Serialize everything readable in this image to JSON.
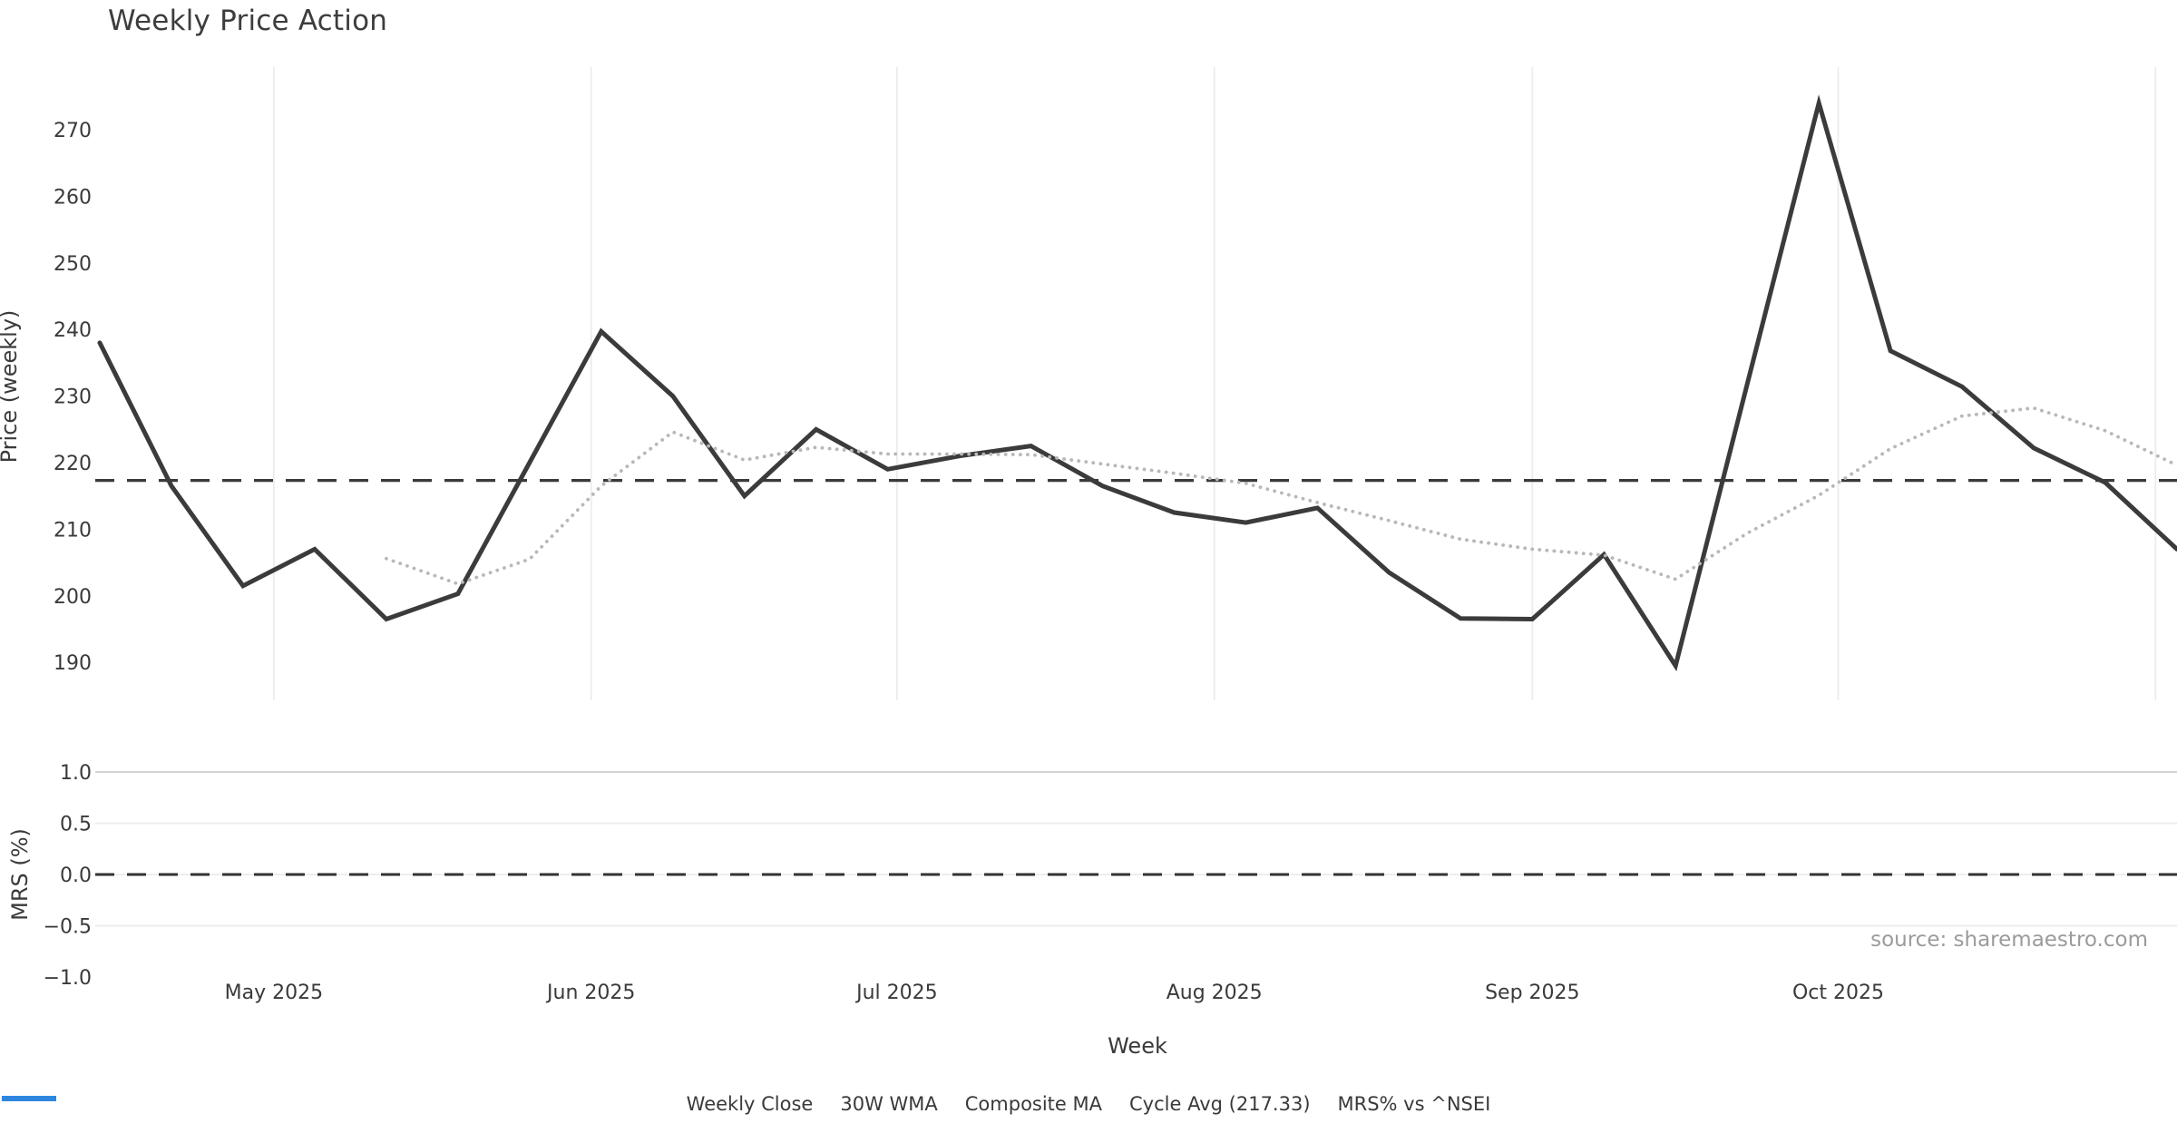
{
  "title": "Weekly Price Action",
  "source_note": "source: sharemaestro.com",
  "axes": {
    "price_label": "Price (weekly)",
    "mrs_label": "MRS (%)",
    "x_label": "Week"
  },
  "legend": [
    {
      "label": "Weekly Close",
      "color": "#3b3b3b",
      "style": "solid"
    },
    {
      "label": "30W WMA",
      "color": "#d5a021",
      "style": "solid"
    },
    {
      "label": "Composite MA",
      "color": "#b8b8b8",
      "style": "dotted"
    },
    {
      "label": "Cycle Avg (217.33)",
      "color": "#3a3a3a",
      "style": "dashed"
    },
    {
      "label": "MRS% vs ^NSEI",
      "color": "#2e86de",
      "style": "solid"
    }
  ],
  "chart_data": {
    "type": "line",
    "title": "Weekly Price Action",
    "xlabel": "Week",
    "x_points": 30,
    "month_ticks": [
      {
        "label": "May 2025",
        "pos": 2.43
      },
      {
        "label": "Jun 2025",
        "pos": 6.86
      },
      {
        "label": "Jul 2025",
        "pos": 11.13
      },
      {
        "label": "Aug 2025",
        "pos": 15.56
      },
      {
        "label": "Sep 2025",
        "pos": 20.0
      },
      {
        "label": "Oct 2025",
        "pos": 24.27
      },
      {
        "label": "",
        "pos": 28.7
      }
    ],
    "panels": [
      {
        "name": "price",
        "ylabel": "Price (weekly)",
        "ylim": [
          185,
          281
        ],
        "yticks": [
          270,
          260,
          250,
          240,
          230,
          220,
          210,
          200,
          190
        ],
        "grid": "vertical-months",
        "series": [
          {
            "name": "Weekly Close",
            "color": "#3b3b3b",
            "style": "solid",
            "start_index": 0,
            "values": [
              238,
              216.5,
              201.5,
              207,
              196.5,
              200.3,
              220,
              239.7,
              230,
              215,
              225,
              219,
              221,
              222.5,
              216.5,
              212.5,
              211,
              213.2,
              203.5,
              196.6,
              196.5,
              206.2,
              189.5,
              231.8,
              274,
              236.8,
              231.4,
              222.2,
              217,
              207
            ]
          },
          {
            "name": "30W WMA",
            "color": "#d5a021",
            "style": "solid",
            "start_index": 0,
            "values": []
          },
          {
            "name": "Composite MA",
            "color": "#b8b8b8",
            "style": "dotted",
            "start_index": 4,
            "values": [
              205.6,
              201.8,
              205.5,
              216.5,
              224.6,
              220.4,
              222.3,
              221.3,
              221.3,
              221.2,
              219.8,
              218.4,
              216.9,
              214.0,
              211.3,
              208.5,
              207.0,
              206.1,
              202.5,
              209.4,
              215.1,
              222.1,
              227.0,
              228.2,
              224.8,
              219.6
            ]
          },
          {
            "name": "Cycle Avg",
            "color": "#3a3a3a",
            "style": "dashed",
            "constant": 217.33
          }
        ]
      },
      {
        "name": "mrs",
        "ylabel": "MRS (%)",
        "ylim": [
          -1.05,
          1.05
        ],
        "yticks": [
          {
            "label": "1.0",
            "v": 1.0,
            "grid": "#d3d3d3"
          },
          {
            "label": "0.5",
            "v": 0.5,
            "grid": "#ededed"
          },
          {
            "label": "0.0",
            "v": 0.0,
            "grid": "#ededed"
          },
          {
            "label": "−0.5",
            "v": -0.5,
            "grid": "#ededed"
          },
          {
            "label": "−1.0",
            "v": -1.0,
            "grid": null
          }
        ],
        "series": [
          {
            "name": "MRS% vs ^NSEI",
            "color": "#2e86de",
            "style": "solid",
            "start_index": 0,
            "values": []
          },
          {
            "name": "Zero line",
            "color": "#333333",
            "style": "dashed",
            "constant": 0
          }
        ]
      }
    ]
  }
}
